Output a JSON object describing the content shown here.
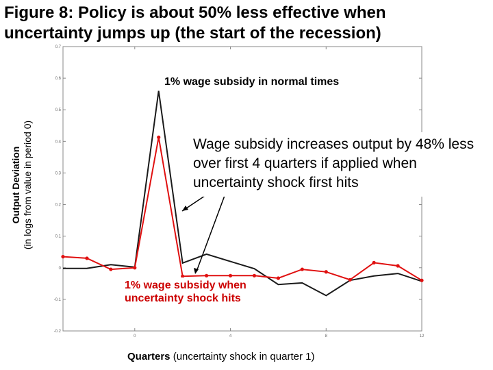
{
  "title_line1": "Figure 8: Policy is about 50% less effective when",
  "title_line2": "uncertainty jumps up (the start of the recession)",
  "annotations": {
    "normal": "1% wage subsidy in normal times",
    "box": "Wage subsidy increases output by 48% less over first 4 quarters if applied when uncertainty shock first hits",
    "shock_line1": "1% wage subsidy when",
    "shock_line2": "uncertainty shock hits"
  },
  "chart_data": {
    "type": "line",
    "title": "Figure 8: Policy is about 50% less effective when uncertainty jumps up (the start of the recession)",
    "xlabel_bold": "Quarters",
    "xlabel_rest": " (uncertainty shock in quarter 1)",
    "ylabel_bold": "Output Deviation",
    "ylabel_rest": "(in logs from value in period 0)",
    "xlim": [
      -3,
      12
    ],
    "ylim": [
      -0.2,
      0.7
    ],
    "xticks": [
      0,
      4,
      8,
      12
    ],
    "yticks": [
      -0.2,
      -0.1,
      0,
      0.1,
      0.2,
      0.3,
      0.4,
      0.5,
      0.6,
      0.7
    ],
    "ytick_labels": [
      "-0.2",
      "-0.1",
      "0",
      "0.1",
      "0.2",
      "0.3",
      "0.4",
      "0.5",
      "0.6",
      "0.7"
    ],
    "grid": false,
    "colors": {
      "normal": "#1a1a1a",
      "shock": "#e01010"
    },
    "series": [
      {
        "key": "normal",
        "x": [
          -3,
          -2,
          -1,
          0,
          1,
          2,
          3,
          4,
          5,
          6,
          7,
          8,
          9,
          10,
          11,
          12
        ],
        "values": [
          -0.002,
          -0.002,
          0.01,
          0.002,
          0.56,
          0.015,
          0.043,
          0.02,
          -0.003,
          -0.053,
          -0.048,
          -0.088,
          -0.04,
          -0.026,
          -0.018,
          -0.043
        ]
      },
      {
        "key": "shock",
        "x": [
          -3,
          -2,
          -1,
          0,
          1,
          2,
          3,
          4,
          5,
          6,
          7,
          8,
          9,
          10,
          11,
          12
        ],
        "values": [
          0.035,
          0.03,
          -0.005,
          0.0,
          0.413,
          -0.027,
          -0.025,
          -0.025,
          -0.025,
          -0.033,
          -0.005,
          -0.013,
          -0.038,
          0.016,
          0.006,
          -0.04
        ]
      }
    ]
  }
}
